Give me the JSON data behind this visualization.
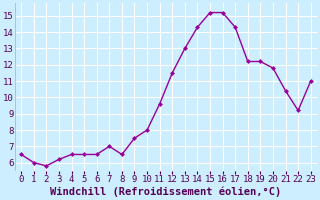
{
  "x": [
    0,
    1,
    2,
    3,
    4,
    5,
    6,
    7,
    8,
    9,
    10,
    11,
    12,
    13,
    14,
    15,
    16,
    17,
    18,
    19,
    20,
    21,
    22,
    23
  ],
  "y": [
    6.5,
    6.0,
    5.8,
    6.2,
    6.5,
    6.5,
    6.5,
    7.0,
    6.5,
    7.5,
    8.0,
    9.6,
    11.5,
    13.0,
    14.3,
    15.2,
    15.2,
    14.3,
    12.2,
    12.2,
    11.8,
    10.4,
    9.2,
    11.0
  ],
  "xlabel": "Windchill (Refroidissement éolien,°C)",
  "ylim": [
    5.5,
    15.8
  ],
  "xlim": [
    -0.5,
    23.5
  ],
  "yticks": [
    6,
    7,
    8,
    9,
    10,
    11,
    12,
    13,
    14,
    15
  ],
  "xticks": [
    0,
    1,
    2,
    3,
    4,
    5,
    6,
    7,
    8,
    9,
    10,
    11,
    12,
    13,
    14,
    15,
    16,
    17,
    18,
    19,
    20,
    21,
    22,
    23
  ],
  "line_color": "#990099",
  "marker": "D",
  "marker_size": 2.5,
  "bg_color": "#cceeff",
  "grid_color": "#ffffff",
  "tick_fontsize": 6.5,
  "xlabel_fontsize": 7.5
}
